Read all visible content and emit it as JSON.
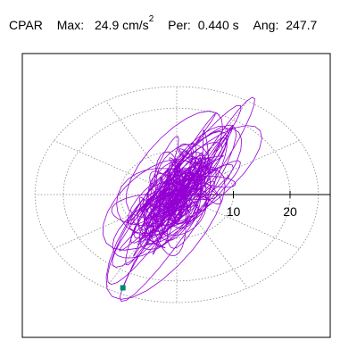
{
  "header": {
    "station": "CPAR",
    "max_label": "Max:",
    "max_value": "24.9 cm/s",
    "max_exponent": "2",
    "per_label": "Per:",
    "per_value": "0.440 s",
    "ang_label": "Ang:",
    "ang_value": "247.7"
  },
  "plot": {
    "ring_labels": [
      "10",
      "20"
    ],
    "rings": [
      10,
      20
    ],
    "max_ring": 25,
    "trace_color": "#9400d3",
    "marker_color": "#008b6b",
    "grid_color": "#888888",
    "end_point": [
      -9.5,
      -21.6
    ]
  }
}
